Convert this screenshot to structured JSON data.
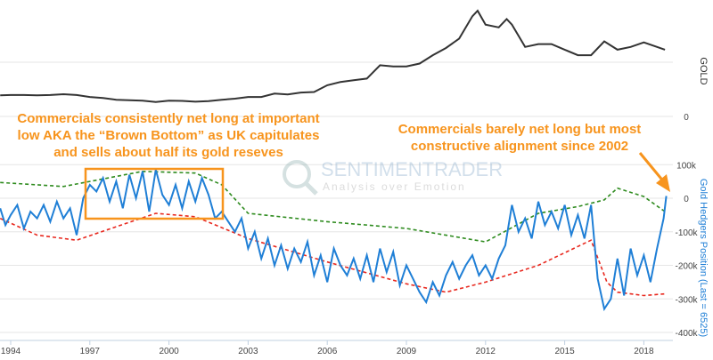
{
  "chart_data": [
    {
      "type": "line",
      "title": "GOLD",
      "ylabel": "GOLD",
      "yticks": [
        "0"
      ],
      "series": [
        {
          "name": "GOLD",
          "color": "#333333",
          "x": [
            1993.6,
            1994,
            1994.5,
            1995,
            1995.5,
            1996,
            1996.5,
            1997,
            1997.5,
            1998,
            1998.5,
            1999,
            1999.5,
            2000,
            2000.5,
            2001,
            2001.5,
            2002,
            2002.5,
            2003,
            2003.5,
            2004,
            2004.5,
            2005,
            2005.5,
            2006,
            2006.5,
            2007,
            2007.5,
            2008,
            2008.5,
            2009,
            2009.5,
            2010,
            2010.5,
            2011,
            2011.5,
            2011.7,
            2012,
            2012.5,
            2012.8,
            2013,
            2013.5,
            2014,
            2014.5,
            2015,
            2015.5,
            2016,
            2016.5,
            2017,
            2017.5,
            2018,
            2018.5,
            2018.8
          ],
          "values": [
            380,
            385,
            385,
            380,
            385,
            400,
            385,
            350,
            330,
            300,
            290,
            285,
            260,
            285,
            280,
            265,
            275,
            300,
            320,
            350,
            350,
            410,
            395,
            430,
            440,
            560,
            620,
            650,
            680,
            920,
            900,
            900,
            950,
            1100,
            1230,
            1400,
            1800,
            1900,
            1650,
            1600,
            1750,
            1650,
            1250,
            1300,
            1300,
            1200,
            1100,
            1100,
            1350,
            1200,
            1250,
            1330,
            1250,
            1200
          ]
        }
      ]
    },
    {
      "type": "line",
      "ylabel": "Gold Hedgers Position (Last = 6525)",
      "ylim": [
        -400,
        100
      ],
      "yticks": [
        "100k",
        "0",
        "-100k",
        "-200k",
        "-300k",
        "-400k"
      ],
      "ytick_values": [
        100,
        0,
        -100,
        -200,
        -300,
        -400
      ],
      "xticks": [
        "1994",
        "1997",
        "2000",
        "2003",
        "2006",
        "2009",
        "2012",
        "2015",
        "2018"
      ],
      "xtick_values": [
        1994,
        1997,
        2000,
        2003,
        2006,
        2009,
        2012,
        2015,
        2018
      ],
      "units": "thousands of contracts",
      "series": [
        {
          "name": "Gold Hedgers Position",
          "color": "#1f7fd6",
          "dash": false,
          "x": [
            1993.6,
            1993.8,
            1994,
            1994.25,
            1994.5,
            1994.75,
            1995,
            1995.25,
            1995.5,
            1995.75,
            1996,
            1996.25,
            1996.5,
            1996.75,
            1997,
            1997.25,
            1997.5,
            1997.75,
            1998,
            1998.25,
            1998.5,
            1998.75,
            1999,
            1999.25,
            1999.5,
            1999.75,
            2000,
            2000.25,
            2000.5,
            2000.75,
            2001,
            2001.25,
            2001.5,
            2001.75,
            2002,
            2002.25,
            2002.5,
            2002.75,
            2003,
            2003.25,
            2003.5,
            2003.75,
            2004,
            2004.25,
            2004.5,
            2004.75,
            2005,
            2005.25,
            2005.5,
            2005.75,
            2006,
            2006.25,
            2006.5,
            2006.75,
            2007,
            2007.25,
            2007.5,
            2007.75,
            2008,
            2008.25,
            2008.5,
            2008.75,
            2009,
            2009.25,
            2009.5,
            2009.75,
            2010,
            2010.25,
            2010.5,
            2010.75,
            2011,
            2011.25,
            2011.5,
            2011.75,
            2012,
            2012.25,
            2012.5,
            2012.75,
            2013,
            2013.25,
            2013.5,
            2013.75,
            2014,
            2014.25,
            2014.5,
            2014.75,
            2015,
            2015.25,
            2015.5,
            2015.75,
            2016,
            2016.25,
            2016.5,
            2016.75,
            2017,
            2017.25,
            2017.5,
            2017.75,
            2018,
            2018.25,
            2018.5,
            2018.75,
            2018.85
          ],
          "values": [
            -30,
            -80,
            -50,
            -20,
            -90,
            -40,
            -60,
            -20,
            -70,
            -10,
            -60,
            -30,
            -110,
            0,
            40,
            20,
            60,
            -10,
            50,
            -30,
            70,
            0,
            80,
            -40,
            85,
            10,
            -20,
            40,
            -30,
            50,
            -10,
            60,
            10,
            -60,
            -40,
            -70,
            -100,
            -60,
            -150,
            -100,
            -180,
            -120,
            -200,
            -140,
            -210,
            -150,
            -190,
            -130,
            -230,
            -170,
            -250,
            -150,
            -200,
            -230,
            -180,
            -240,
            -170,
            -250,
            -150,
            -220,
            -160,
            -260,
            -200,
            -240,
            -280,
            -310,
            -250,
            -290,
            -230,
            -190,
            -240,
            -200,
            -170,
            -230,
            -200,
            -240,
            -180,
            -140,
            -20,
            -100,
            -60,
            -120,
            -10,
            -80,
            -40,
            -90,
            -20,
            -110,
            -50,
            -120,
            -20,
            -240,
            -330,
            -300,
            -180,
            -290,
            -150,
            -230,
            -170,
            -250,
            -150,
            -60,
            6.525
          ]
        },
        {
          "name": "Upper band",
          "color": "#2e8b1e",
          "dash": true,
          "x": [
            1993.6,
            1996,
            1997,
            1999,
            2001,
            2002,
            2003,
            2006,
            2009,
            2012,
            2014,
            2015.5,
            2016.5,
            2017,
            2018,
            2018.8
          ],
          "values": [
            47,
            35,
            50,
            80,
            75,
            40,
            -45,
            -70,
            -90,
            -130,
            -45,
            -25,
            -5,
            30,
            5,
            -40
          ]
        },
        {
          "name": "Lower band",
          "color": "#e8281e",
          "dash": true,
          "x": [
            1993.6,
            1995,
            1996.5,
            1998,
            1999.5,
            2001,
            2003,
            2006,
            2009,
            2010.5,
            2012,
            2014,
            2016,
            2016.6,
            2017,
            2018,
            2018.8
          ],
          "values": [
            -60,
            -110,
            -125,
            -85,
            -45,
            -55,
            -120,
            -190,
            -255,
            -280,
            -250,
            -200,
            -125,
            -250,
            -280,
            -290,
            -285
          ]
        }
      ]
    }
  ],
  "annotations": {
    "left": [
      "Commercials consistently net long at important",
      "low AKA the “Brown Bottom” as UK capitulates",
      "and sells about half its gold reseves"
    ],
    "right": [
      "Commercials barely net long but most",
      "constructive alignment since 2002"
    ],
    "accent": "#f7941d"
  },
  "watermark": {
    "name": "SENTIMENTRADER",
    "tagline": "Analysis over Emotion"
  }
}
